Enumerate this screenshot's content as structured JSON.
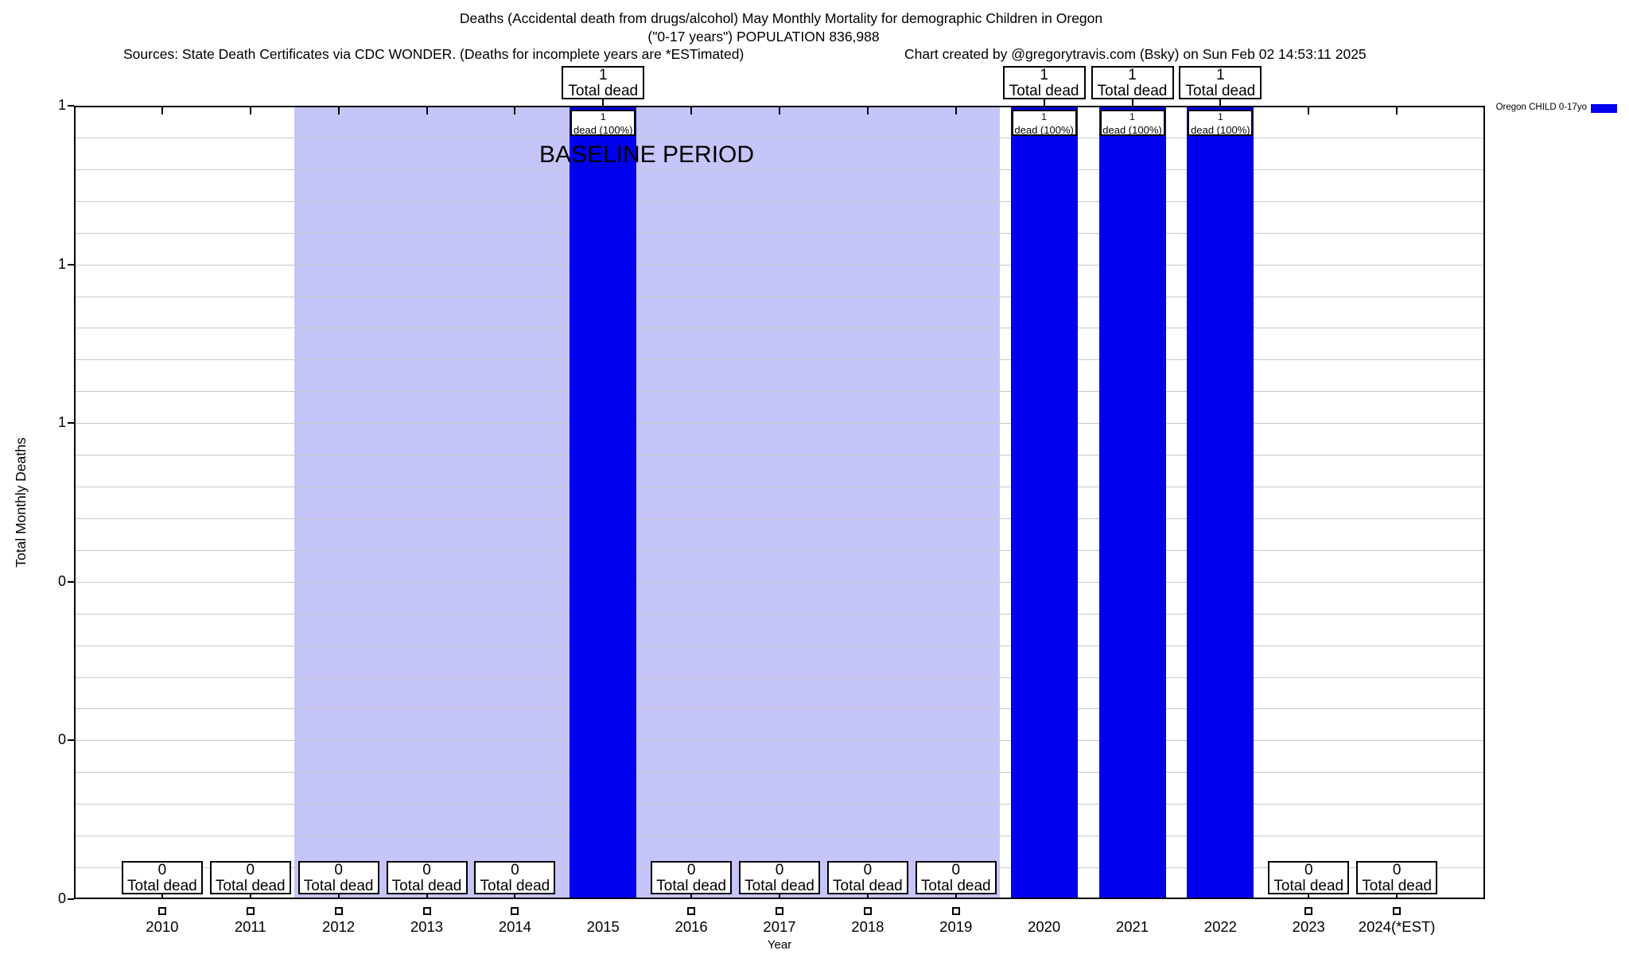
{
  "header": {
    "title_line1": "Deaths (Accidental death from drugs/alcohol) May Monthly Mortality for demographic Children in Oregon",
    "title_line2": "(\"0-17 years\") POPULATION 836,988",
    "sources_note": "Sources: State Death Certificates via CDC WONDER. (Deaths for incomplete years are *ESTimated)",
    "credit_note": "Chart created by @gregorytravis.com (Bsky) on Sun Feb 02 14:53:11 2025"
  },
  "legend": {
    "series_label": "Oregon CHILD 0-17yo",
    "swatch_color": "#0000ee",
    "position": "top-right"
  },
  "chart_data": {
    "type": "bar",
    "title": "Deaths (Accidental death from drugs/alcohol) May Monthly Mortality for demographic Children in Oregon (\"0-17 years\") POPULATION 836,988",
    "xlabel": "Year",
    "ylabel": "Total Monthly Deaths",
    "ylim": [
      0,
      1
    ],
    "grid": true,
    "legend_position": "top-right",
    "categories": [
      "2010",
      "2011",
      "2012",
      "2013",
      "2014",
      "2015",
      "2016",
      "2017",
      "2018",
      "2019",
      "2020",
      "2021",
      "2022",
      "2023",
      "2024(*EST)"
    ],
    "series": [
      {
        "name": "Oregon CHILD 0-17yo",
        "values": [
          0,
          0,
          0,
          0,
          0,
          1,
          0,
          0,
          0,
          0,
          1,
          1,
          1,
          0,
          0
        ]
      }
    ],
    "y_tick_labels": [
      "1",
      "1",
      "1",
      "0",
      "0",
      "0"
    ],
    "y_tick_values": [
      1.0,
      0.8,
      0.6,
      0.4,
      0.2,
      0.0
    ],
    "bar_color": "#0000ee",
    "baseline_region": {
      "label": "BASELINE PERIOD",
      "from_category": "2012",
      "to_category": "2019",
      "fill_color": "#c5c5f9"
    },
    "annotations": {
      "nonzero_top_box_line2": "Total dead",
      "zero_box_line1": "0",
      "zero_box_line2": "Total dead",
      "inner_box_line1": "1",
      "inner_box_line2": "dead (100%)"
    }
  }
}
